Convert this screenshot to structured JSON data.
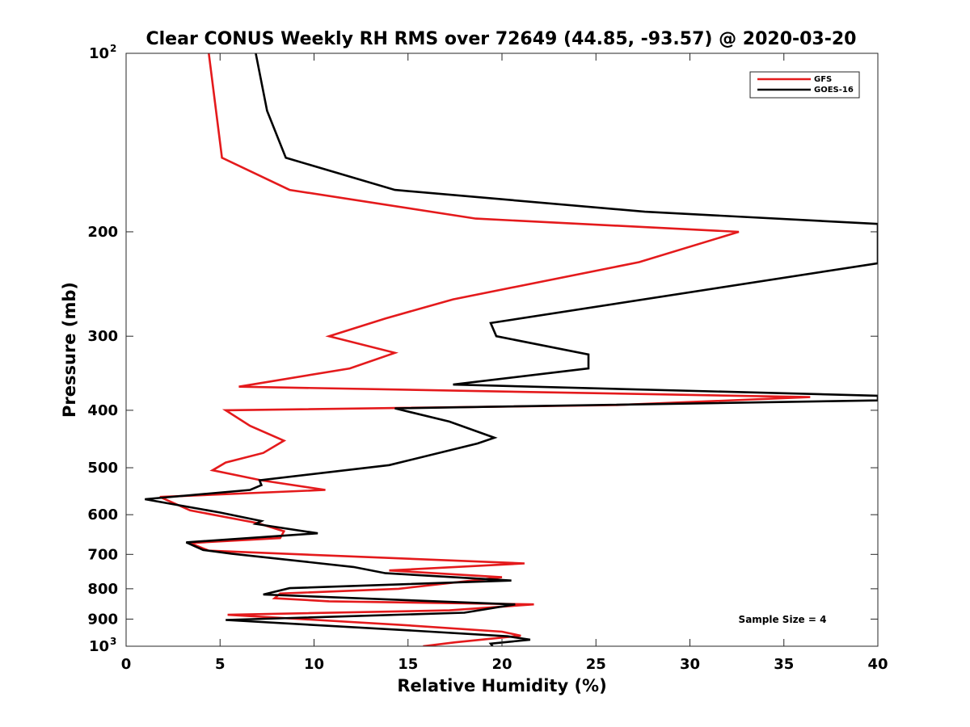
{
  "chart_data": {
    "type": "line",
    "title": "Clear CONUS Weekly RH RMS over 72649 (44.85, -93.57) @ 2020-03-20",
    "xlabel": "Relative Humidity (%)",
    "ylabel": "Pressure (mb)",
    "xlim": [
      0,
      40
    ],
    "ylim": [
      100,
      1000
    ],
    "yscale": "log",
    "y_reversed": true,
    "grid": false,
    "legend_position": "top-right",
    "x_ticks": [
      "0",
      "5",
      "10",
      "15",
      "20",
      "25",
      "30",
      "35",
      "40"
    ],
    "y_ticks": [
      {
        "value": 100,
        "base": "10",
        "exp": "2"
      },
      {
        "value": 200,
        "label": "200"
      },
      {
        "value": 300,
        "label": "300"
      },
      {
        "value": 400,
        "label": "400"
      },
      {
        "value": 500,
        "label": "500"
      },
      {
        "value": 600,
        "label": "600"
      },
      {
        "value": 700,
        "label": "700"
      },
      {
        "value": 800,
        "label": "800"
      },
      {
        "value": 900,
        "label": "900"
      },
      {
        "value": 1000,
        "base": "10",
        "exp": "3"
      }
    ],
    "annotation": "Sample Size = 4",
    "series": [
      {
        "name": "GFS",
        "color": "#e41a1c",
        "points": [
          [
            4.4,
            100
          ],
          [
            5.1,
            150
          ],
          [
            8.7,
            170
          ],
          [
            18.6,
            190
          ],
          [
            32.6,
            200
          ],
          [
            27.3,
            225
          ],
          [
            17.4,
            260
          ],
          [
            13.8,
            280
          ],
          [
            10.8,
            300
          ],
          [
            14.3,
            320
          ],
          [
            11.9,
            340
          ],
          [
            6.0,
            365
          ],
          [
            36.4,
            380
          ],
          [
            26.0,
            392
          ],
          [
            5.3,
            400
          ],
          [
            6.6,
            425
          ],
          [
            8.4,
            450
          ],
          [
            7.3,
            472
          ],
          [
            5.3,
            490
          ],
          [
            4.6,
            505
          ],
          [
            7.2,
            525
          ],
          [
            10.6,
            545
          ],
          [
            1.8,
            560
          ],
          [
            3.4,
            590
          ],
          [
            7.0,
            620
          ],
          [
            8.4,
            640
          ],
          [
            8.2,
            657
          ],
          [
            3.4,
            670
          ],
          [
            4.4,
            690
          ],
          [
            21.2,
            725
          ],
          [
            14.0,
            745
          ],
          [
            20.0,
            765
          ],
          [
            14.5,
            800
          ],
          [
            8.2,
            815
          ],
          [
            7.9,
            830
          ],
          [
            10.8,
            840
          ],
          [
            21.7,
            850
          ],
          [
            17.2,
            870
          ],
          [
            5.4,
            885
          ],
          [
            14.5,
            920
          ],
          [
            20.0,
            945
          ],
          [
            21.0,
            960
          ],
          [
            17.5,
            985
          ],
          [
            15.8,
            1000
          ]
        ]
      },
      {
        "name": "GOES-16",
        "color": "#000000",
        "points": [
          [
            6.9,
            100
          ],
          [
            7.5,
            125
          ],
          [
            8.5,
            150
          ],
          [
            14.3,
            170
          ],
          [
            27.6,
            185
          ],
          [
            40.0,
            194
          ],
          [
            40.0,
            226
          ],
          [
            19.4,
            285
          ],
          [
            19.7,
            300
          ],
          [
            24.6,
            322
          ],
          [
            24.6,
            340
          ],
          [
            17.4,
            362
          ],
          [
            40.0,
            378
          ],
          [
            40.0,
            385
          ],
          [
            14.3,
            397
          ],
          [
            17.2,
            418
          ],
          [
            19.6,
            445
          ],
          [
            18.7,
            455
          ],
          [
            14.0,
            495
          ],
          [
            7.1,
            525
          ],
          [
            7.2,
            535
          ],
          [
            6.6,
            545
          ],
          [
            1.0,
            565
          ],
          [
            5.0,
            595
          ],
          [
            7.2,
            615
          ],
          [
            6.9,
            622
          ],
          [
            10.2,
            645
          ],
          [
            3.2,
            668
          ],
          [
            4.1,
            688
          ],
          [
            5.6,
            698
          ],
          [
            12.1,
            735
          ],
          [
            13.8,
            753
          ],
          [
            20.5,
            775
          ],
          [
            8.7,
            798
          ],
          [
            7.3,
            818
          ],
          [
            20.7,
            850
          ],
          [
            18.0,
            878
          ],
          [
            5.3,
            903
          ],
          [
            15.0,
            940
          ],
          [
            20.3,
            962
          ],
          [
            21.5,
            975
          ],
          [
            19.4,
            990
          ],
          [
            19.5,
            1000
          ]
        ]
      }
    ]
  }
}
